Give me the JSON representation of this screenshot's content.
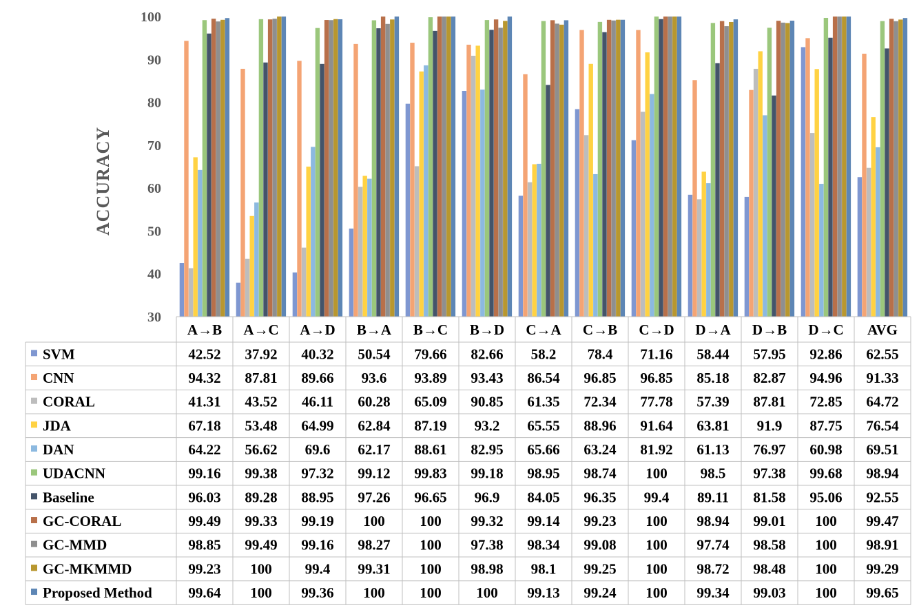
{
  "chart_data": {
    "type": "bar",
    "ylabel": "ACCURACY",
    "ylim": [
      30,
      100
    ],
    "yticks": [
      30,
      40,
      50,
      60,
      70,
      80,
      90,
      100
    ],
    "grid": false,
    "legend_placement": "table-left",
    "categories": [
      "A→B",
      "A→C",
      "A→D",
      "B→A",
      "B→C",
      "B→D",
      "C→A",
      "C→B",
      "C→D",
      "D→A",
      "D→B",
      "D→C",
      "AVG"
    ],
    "series": [
      {
        "name": "SVM",
        "color": "#7f97d1",
        "values": [
          "42.52",
          "37.92",
          "40.32",
          "50.54",
          "79.66",
          "82.66",
          "58.2",
          "78.4",
          "71.16",
          "58.44",
          "57.95",
          "92.86",
          "62.55"
        ]
      },
      {
        "name": "CNN",
        "color": "#f4a474",
        "values": [
          "94.32",
          "87.81",
          "89.66",
          "93.6",
          "93.89",
          "93.43",
          "86.54",
          "96.85",
          "96.85",
          "85.18",
          "82.87",
          "94.96",
          "91.33"
        ]
      },
      {
        "name": "CORAL",
        "color": "#bdbdbd",
        "values": [
          "41.31",
          "43.52",
          "46.11",
          "60.28",
          "65.09",
          "90.85",
          "61.35",
          "72.34",
          "77.78",
          "57.39",
          "87.81",
          "72.85",
          "64.72"
        ]
      },
      {
        "name": "JDA",
        "color": "#ffd243",
        "values": [
          "67.18",
          "53.48",
          "64.99",
          "62.84",
          "87.19",
          "93.2",
          "65.55",
          "88.96",
          "91.64",
          "63.81",
          "91.9",
          "87.75",
          "76.54"
        ]
      },
      {
        "name": "DAN",
        "color": "#8cb9e0",
        "values": [
          "64.22",
          "56.62",
          "69.6",
          "62.17",
          "88.61",
          "82.95",
          "65.66",
          "63.24",
          "81.92",
          "61.13",
          "76.97",
          "60.98",
          "69.51"
        ]
      },
      {
        "name": "UDACNN",
        "color": "#9bc77c",
        "values": [
          "99.16",
          "99.38",
          "97.32",
          "99.12",
          "99.83",
          "99.18",
          "98.95",
          "98.74",
          "100",
          "98.5",
          "97.38",
          "99.68",
          "98.94"
        ]
      },
      {
        "name": "Baseline",
        "color": "#44546a",
        "values": [
          "96.03",
          "89.28",
          "88.95",
          "97.26",
          "96.65",
          "96.9",
          "84.05",
          "96.35",
          "99.4",
          "89.11",
          "81.58",
          "95.06",
          "92.55"
        ]
      },
      {
        "name": "GC-CORAL",
        "color": "#b8704a",
        "values": [
          "99.49",
          "99.33",
          "99.19",
          "100",
          "100",
          "99.32",
          "99.14",
          "99.23",
          "100",
          "98.94",
          "99.01",
          "100",
          "99.47"
        ]
      },
      {
        "name": "GC-MMD",
        "color": "#8f8f8f",
        "values": [
          "98.85",
          "99.49",
          "99.16",
          "98.27",
          "100",
          "97.38",
          "98.34",
          "99.08",
          "100",
          "97.74",
          "98.58",
          "100",
          "98.91"
        ]
      },
      {
        "name": "GC-MKMMD",
        "color": "#b8972f",
        "values": [
          "99.23",
          "100",
          "99.4",
          "99.31",
          "100",
          "98.98",
          "98.1",
          "99.25",
          "100",
          "98.72",
          "98.48",
          "100",
          "99.29"
        ]
      },
      {
        "name": "Proposed Method",
        "color": "#5d86b5",
        "values": [
          "99.64",
          "100",
          "99.36",
          "100",
          "100",
          "100",
          "99.13",
          "99.24",
          "100",
          "99.34",
          "99.03",
          "100",
          "99.65"
        ]
      }
    ]
  }
}
